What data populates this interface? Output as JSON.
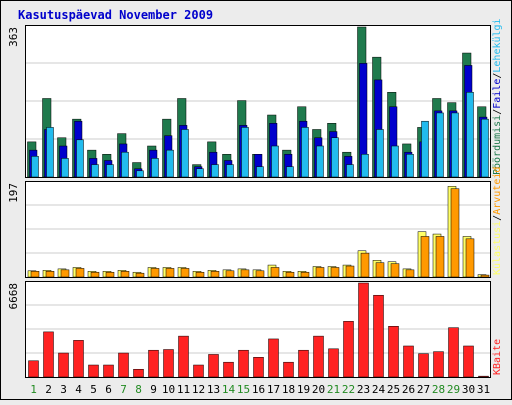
{
  "title": "Kasutuspäevad November 2009",
  "colors": {
    "background": "#ececec",
    "plot_background": "#ffffff",
    "title": "#0000cc",
    "gridline": "#cccccc",
    "weekday_label": "#000000",
    "weekend_label": "#228b22",
    "visits_outer": "#1f7a4d",
    "files_outer": "#0000cc",
    "pages_outer": "#22bbee",
    "hits": "#ff3333",
    "kbytes": "#ff2222",
    "sites_outer": "#ffff66",
    "sites_inner": "#ff9900",
    "label_hits": "#1f7a4d",
    "label_files": "#0000cc",
    "label_pages": "#22bbee",
    "label_sites": "#ff9900",
    "label_visits": "#ffff66",
    "label_kbytes": "#ff2222"
  },
  "chart_data": [
    {
      "type": "bar",
      "panel": "top",
      "ytick": "363",
      "ylim": [
        0,
        363
      ],
      "right_labels": [
        {
          "text": "Pöördumisi",
          "color_key": "label_hits"
        },
        {
          "text": "/",
          "color_key": "weekday_label"
        },
        {
          "text": "Faile",
          "color_key": "label_files"
        },
        {
          "text": "/",
          "color_key": "weekday_label"
        },
        {
          "text": "Lehekülgi",
          "color_key": "label_pages"
        }
      ],
      "categories": [
        "1",
        "2",
        "3",
        "4",
        "5",
        "6",
        "7",
        "8",
        "9",
        "10",
        "11",
        "12",
        "13",
        "14",
        "15",
        "16",
        "17",
        "18",
        "19",
        "20",
        "21",
        "22",
        "23",
        "24",
        "25",
        "26",
        "27",
        "28",
        "29",
        "30",
        "31"
      ],
      "weekend_days": [
        "1",
        "7",
        "8",
        "14",
        "15",
        "21",
        "22",
        "28",
        "29"
      ],
      "series": [
        {
          "name": "Pöördumisi",
          "values": [
            85,
            190,
            95,
            140,
            65,
            55,
            105,
            35,
            75,
            140,
            190,
            30,
            85,
            55,
            185,
            55,
            150,
            65,
            170,
            115,
            130,
            60,
            363,
            290,
            205,
            80,
            120,
            190,
            180,
            300,
            170
          ]
        },
        {
          "name": "Faile",
          "values": [
            65,
            115,
            75,
            135,
            45,
            40,
            80,
            20,
            65,
            100,
            125,
            25,
            60,
            40,
            125,
            55,
            130,
            55,
            135,
            95,
            110,
            50,
            275,
            235,
            170,
            60,
            85,
            160,
            160,
            270,
            145
          ]
        },
        {
          "name": "Lehekülgi",
          "values": [
            50,
            120,
            45,
            90,
            30,
            30,
            60,
            15,
            45,
            65,
            115,
            20,
            30,
            30,
            120,
            25,
            75,
            25,
            120,
            75,
            95,
            30,
            55,
            115,
            75,
            55,
            135,
            155,
            155,
            205,
            140
          ]
        }
      ]
    },
    {
      "type": "bar",
      "panel": "middle",
      "ytick": "197",
      "ylim": [
        0,
        197
      ],
      "right_labels": [
        {
          "text": "Külastusi",
          "color_key": "label_visits"
        },
        {
          "text": "/",
          "color_key": "weekday_label"
        },
        {
          "text": "Arvuteid",
          "color_key": "label_sites"
        }
      ],
      "series": [
        {
          "name": "Külastusi",
          "values": [
            13,
            14,
            17,
            20,
            12,
            12,
            14,
            10,
            20,
            20,
            20,
            12,
            14,
            15,
            17,
            15,
            25,
            12,
            12,
            22,
            22,
            25,
            55,
            35,
            32,
            17,
            95,
            90,
            190,
            85,
            5
          ]
        },
        {
          "name": "Arvuteid",
          "values": [
            12,
            12,
            15,
            18,
            10,
            10,
            12,
            8,
            18,
            18,
            18,
            10,
            12,
            13,
            15,
            13,
            20,
            10,
            10,
            20,
            20,
            23,
            50,
            30,
            28,
            15,
            85,
            85,
            185,
            80,
            4
          ]
        }
      ]
    },
    {
      "type": "bar",
      "panel": "bottom",
      "ytick": "6668",
      "ylim": [
        0,
        6668
      ],
      "right_labels": [
        {
          "text": "KBaite",
          "color_key": "label_kbytes"
        }
      ],
      "series": [
        {
          "name": "KBaite",
          "values": [
            1150,
            3200,
            1700,
            2600,
            850,
            850,
            1700,
            550,
            1900,
            1950,
            2900,
            850,
            1600,
            1050,
            1900,
            1400,
            2700,
            1050,
            1900,
            2900,
            2000,
            3950,
            6668,
            5800,
            3600,
            2200,
            1650,
            1800,
            3500,
            2200,
            60
          ]
        }
      ]
    }
  ]
}
